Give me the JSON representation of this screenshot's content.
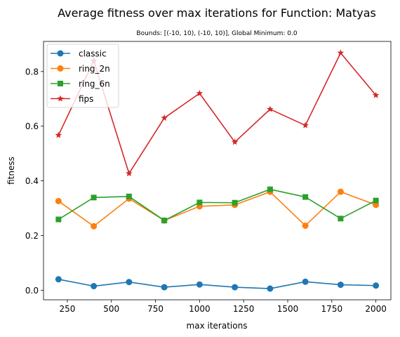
{
  "chart_data": {
    "type": "line",
    "title": "Average fitness over max iterations for Function: Matyas",
    "subtitle": "Bounds: [(-10, 10), (-10, 10)], Global Minimum: 0.0",
    "xlabel": "max iterations",
    "ylabel": "fitness",
    "x": [
      200,
      400,
      600,
      800,
      1000,
      1200,
      1400,
      1600,
      1800,
      2000
    ],
    "xlim": [
      115,
      2085
    ],
    "ylim": [
      -0.035,
      0.91
    ],
    "xticks": [
      250,
      500,
      750,
      1000,
      1250,
      1500,
      1750,
      2000
    ],
    "xtick_labels": [
      "250",
      "500",
      "750",
      "1000",
      "1250",
      "1500",
      "1750",
      "2000"
    ],
    "yticks": [
      0.0,
      0.2,
      0.4,
      0.6,
      0.8
    ],
    "ytick_labels": [
      "0.0",
      "0.2",
      "0.4",
      "0.6",
      "0.8"
    ],
    "grid": false,
    "legend_position": "top-left",
    "series": [
      {
        "name": "classic",
        "color": "#1f77b4",
        "marker": "circle",
        "values": [
          0.04,
          0.015,
          0.03,
          0.011,
          0.021,
          0.011,
          0.006,
          0.031,
          0.02,
          0.017
        ]
      },
      {
        "name": "ring_2n",
        "color": "#ff7f0e",
        "marker": "circle",
        "values": [
          0.326,
          0.234,
          0.335,
          0.255,
          0.307,
          0.312,
          0.36,
          0.236,
          0.36,
          0.312
        ]
      },
      {
        "name": "ring_6n",
        "color": "#2ca02c",
        "marker": "square",
        "values": [
          0.259,
          0.339,
          0.343,
          0.255,
          0.321,
          0.32,
          0.369,
          0.341,
          0.262,
          0.328
        ]
      },
      {
        "name": "fips",
        "color": "#d62728",
        "marker": "star",
        "values": [
          0.567,
          0.839,
          0.427,
          0.63,
          0.72,
          0.542,
          0.662,
          0.603,
          0.868,
          0.713
        ]
      }
    ]
  }
}
